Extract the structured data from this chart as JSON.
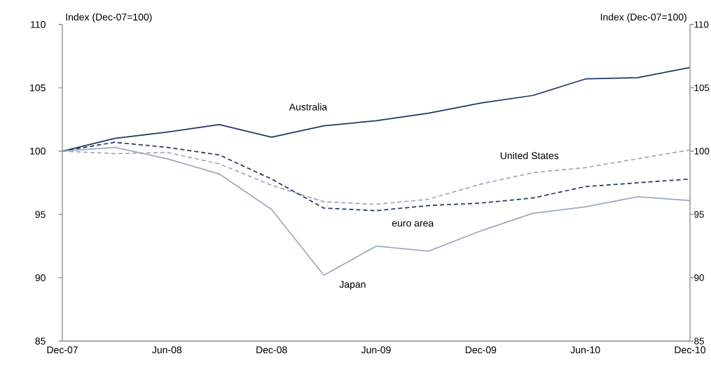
{
  "chart_data": {
    "type": "line",
    "ylabel": "Index (Dec-07=100)",
    "y2label": "Index (Dec-07=100)",
    "categories": [
      "Dec-07",
      null,
      "Jun-08",
      null,
      "Dec-08",
      null,
      "Jun-09",
      null,
      "Dec-09",
      null,
      "Jun-10",
      null,
      "Dec-10"
    ],
    "series": [
      {
        "name": "Australia",
        "color": "#1f3864",
        "line_style": "solid",
        "values": [
          100,
          101.0,
          101.5,
          102.1,
          101.1,
          102.0,
          102.4,
          103.0,
          103.8,
          104.4,
          105.7,
          105.8,
          106.6
        ]
      },
      {
        "name": "United States",
        "color": "#9aabbf",
        "line_style": "dashed",
        "values": [
          100,
          99.8,
          99.9,
          99.0,
          97.3,
          96.0,
          95.8,
          96.2,
          97.4,
          98.3,
          98.7,
          99.4,
          100.1
        ]
      },
      {
        "name": "euro area",
        "color": "#1f3864",
        "line_style": "dashed",
        "values": [
          100,
          100.7,
          100.3,
          99.7,
          97.8,
          95.5,
          95.3,
          95.7,
          95.9,
          96.3,
          97.2,
          97.5,
          97.8
        ]
      },
      {
        "name": "Japan",
        "color": "#9aabbf",
        "line_style": "solid",
        "values": [
          100,
          100.3,
          99.4,
          98.2,
          95.4,
          90.2,
          92.5,
          92.1,
          93.7,
          95.1,
          95.6,
          96.4,
          96.1
        ]
      }
    ],
    "ylim": [
      85,
      110
    ],
    "yticks": [
      85,
      90,
      95,
      100,
      105,
      110
    ],
    "y2lim": [
      85,
      110
    ],
    "y2ticks": [
      85,
      90,
      95,
      100,
      105,
      110
    ]
  }
}
